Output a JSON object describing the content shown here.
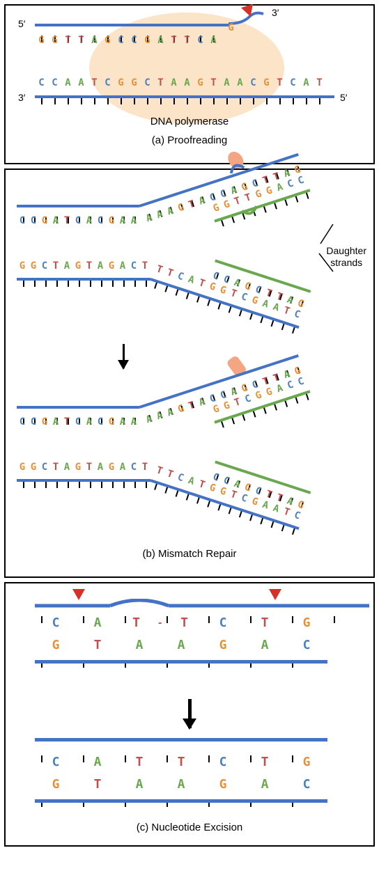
{
  "colors": {
    "A": "#6aa84f",
    "T": "#c0504d",
    "G": "#e69138",
    "C": "#4f81bd",
    "strand_blue": "#4472c4",
    "strand_green": "#6aa84f",
    "polymerase_oval": "#fce4c8",
    "highlight": "#f4a582",
    "red_triangle": "#d73027",
    "black": "#000000"
  },
  "panel_a": {
    "caption": "(a) Proofreading",
    "top": {
      "five": "5′",
      "three": "3′",
      "seq": "GGTTAGCCGATTCA",
      "extra": "G"
    },
    "bottom": {
      "five": "5′",
      "three": "3′",
      "seq": "CCAATCGGCTAAGTAACGTCAT"
    },
    "label": "DNA polymerase"
  },
  "panel_b": {
    "caption": "(b) Mismatch Repair",
    "label": "Daughter\nstrands",
    "before": {
      "top_parent": "CCGATCACGAA",
      "top_fork_parent": "AAAGTACCA",
      "top_fork_daughter_l": "GGT",
      "top_mismatch_parent": "G",
      "top_mismatch_daughter": "T",
      "top_fork_parent_r": "CTTAG",
      "top_fork_daughter_r": "GGACC",
      "bot_parent": "GGCTAGTAGACT",
      "bot_fork_parent": "TTCATGGTCGAATC",
      "bot_fork_daughter": "CCAGCTTAG"
    },
    "after": {
      "top_parent": "CCGATCACGAA",
      "top_fork_parent": "AAAGTACCA",
      "top_fork_daughter_l": "GGT",
      "top_fix_parent": "G",
      "top_fix_daughter": "C",
      "top_fork_parent_r": "CTTAG",
      "top_fork_daughter_r": "GGACC",
      "bot_parent": "GGCTAGTAGACT",
      "bot_fork_parent": "TTCATGGTCGAATC",
      "bot_fork_daughter": "CCAGCTTAG"
    }
  },
  "panel_c": {
    "caption": "(c) Nucleotide Excision",
    "before": {
      "top": "CAT-TCTG",
      "bot": "GTAAGAC"
    },
    "after": {
      "top": "CATTCTG",
      "bot": "GTAAGAC"
    }
  }
}
